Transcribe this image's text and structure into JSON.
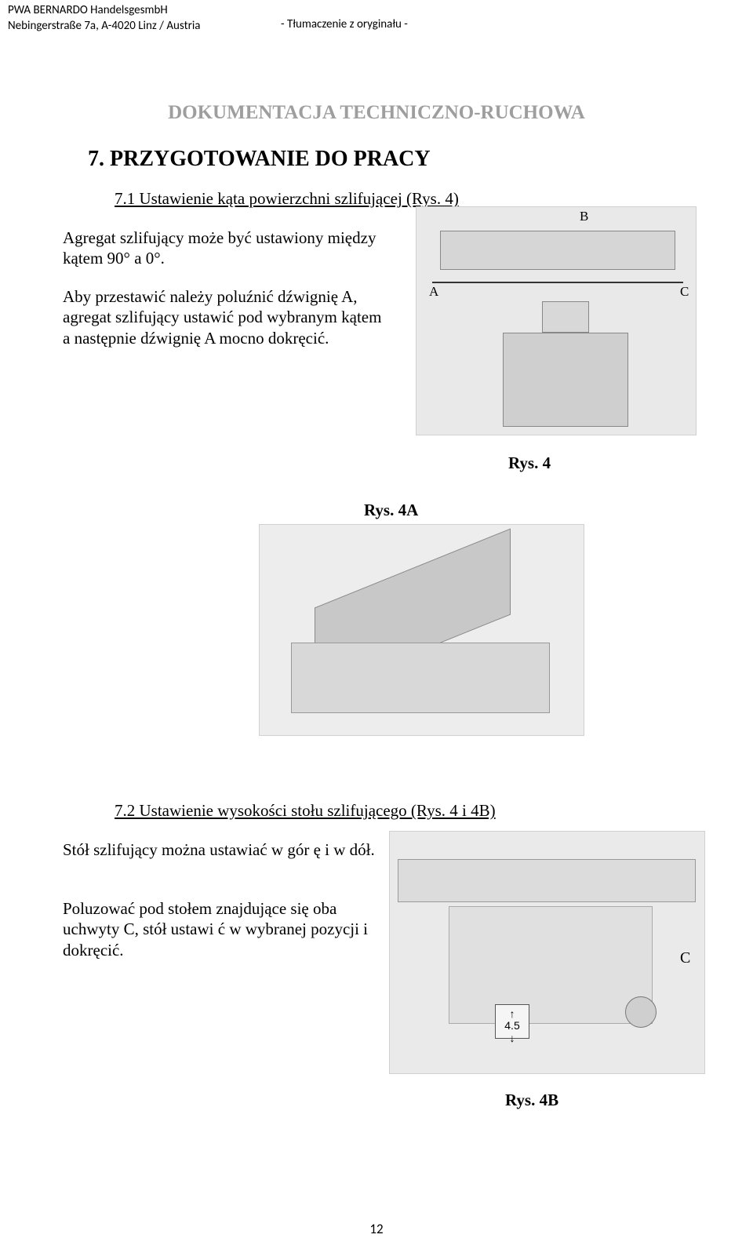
{
  "header": {
    "company": "PWA BERNARDO HandelsgesmbH",
    "address": "Nebingerstraße 7a, A-4020 Linz / Austria",
    "translation_note": "-  Tłumaczenie z oryginału  -"
  },
  "doc_title": "DOKUMENTACJA TECHNICZNO-RUCHOWA",
  "section": {
    "number_title": "7. PRZYGOTOWANIE DO PRACY",
    "sub71": "7.1 Ustawienie kąta powierzchni szlifującej (Rys. 4)",
    "para1": "Agregat szlifujący może być ustawiony między kątem 90° a 0°.",
    "para2": "Aby przestawić należy poluźnić dźwignię A, agregat szlifujący ustawić pod wybranym kątem a następnie dźwignię A mocno dokręcić.",
    "sub72": "7.2 Ustawienie wysokości stołu szlifującego (Rys. 4 i 4B)",
    "para3": "Stół szlifujący można ustawiać w gór ę i w dół.",
    "para4": "Poluzować pod stołem znajdujące się oba uchwyty C, stół ustawi ć w wybranej pozycji i dokręcić."
  },
  "figures": {
    "fig4_caption": "Rys. 4",
    "fig4a_caption": "Rys. 4A",
    "fig4b_caption": "Rys. 4B",
    "labels": {
      "A": "A",
      "B": "B",
      "C": "C",
      "arrows": "4.5"
    }
  },
  "page_number": "12",
  "colors": {
    "title_gray": "#9e9e9e",
    "text": "#000000",
    "figure_bg": "#e9e9e9",
    "figure_border": "#d0d0d0"
  }
}
